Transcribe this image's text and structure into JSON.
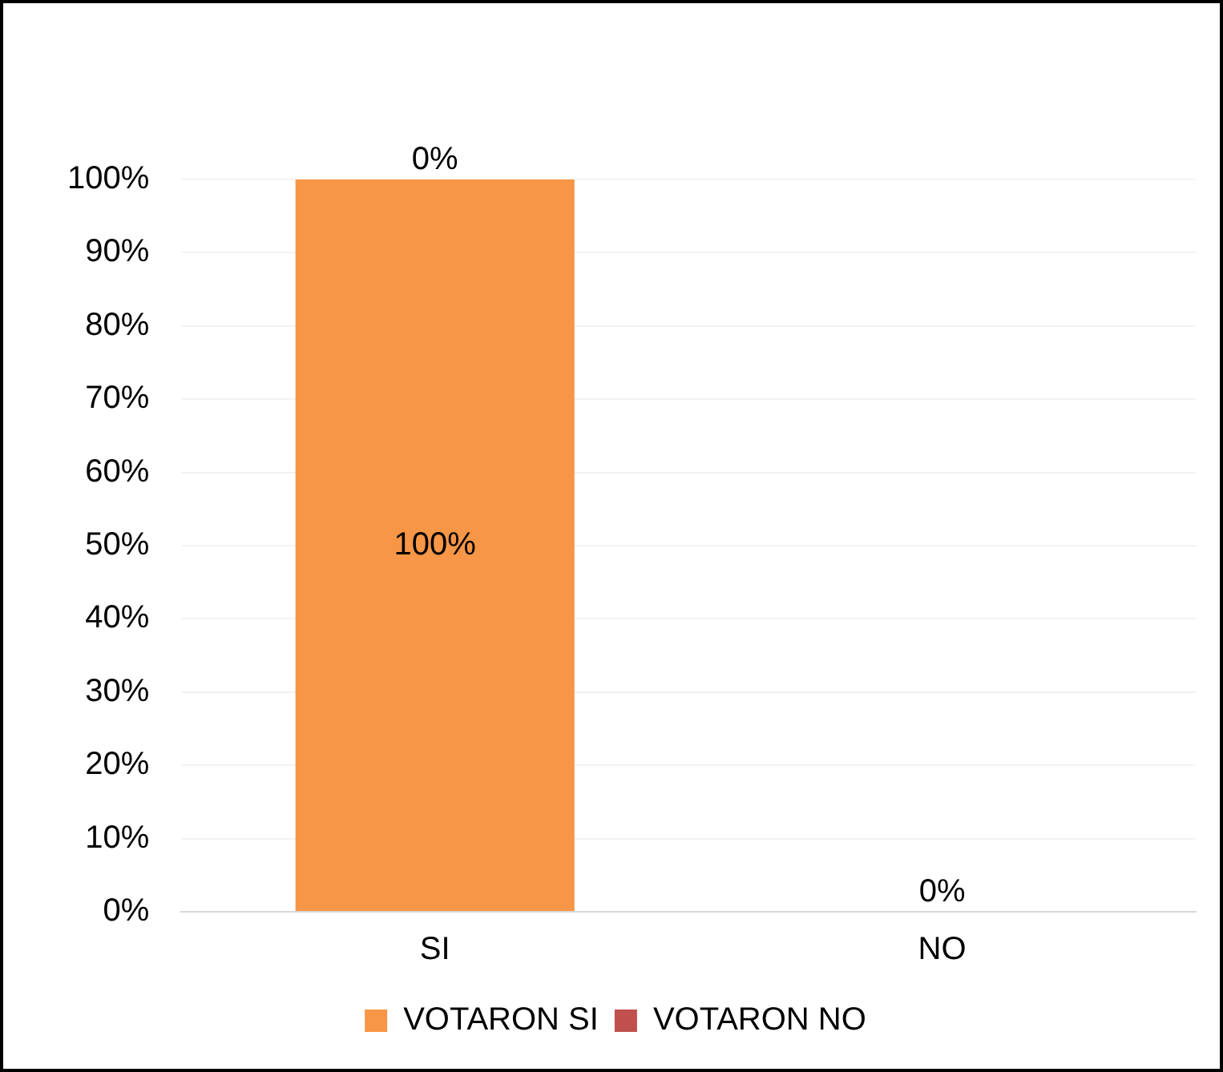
{
  "chart_data": {
    "type": "bar",
    "stacked": true,
    "categories": [
      "SI",
      "NO"
    ],
    "series": [
      {
        "name": "VOTARON SI",
        "color": "#f79646",
        "values": [
          100,
          0
        ],
        "value_labels": [
          "100%",
          "0%"
        ]
      },
      {
        "name": "VOTARON NO",
        "color": "#c0504d",
        "values": [
          0,
          0
        ],
        "value_labels": [
          "0%",
          null
        ]
      }
    ],
    "ylim": [
      0,
      100
    ],
    "yticks": [
      {
        "value": 0,
        "label": "0%"
      },
      {
        "value": 10,
        "label": "10%"
      },
      {
        "value": 20,
        "label": "20%"
      },
      {
        "value": 30,
        "label": "30%"
      },
      {
        "value": 40,
        "label": "40%"
      },
      {
        "value": 50,
        "label": "50%"
      },
      {
        "value": 60,
        "label": "60%"
      },
      {
        "value": 70,
        "label": "70%"
      },
      {
        "value": 80,
        "label": "80%"
      },
      {
        "value": 90,
        "label": "90%"
      },
      {
        "value": 100,
        "label": "100%"
      }
    ],
    "grid": "y",
    "legend": "bottom"
  }
}
